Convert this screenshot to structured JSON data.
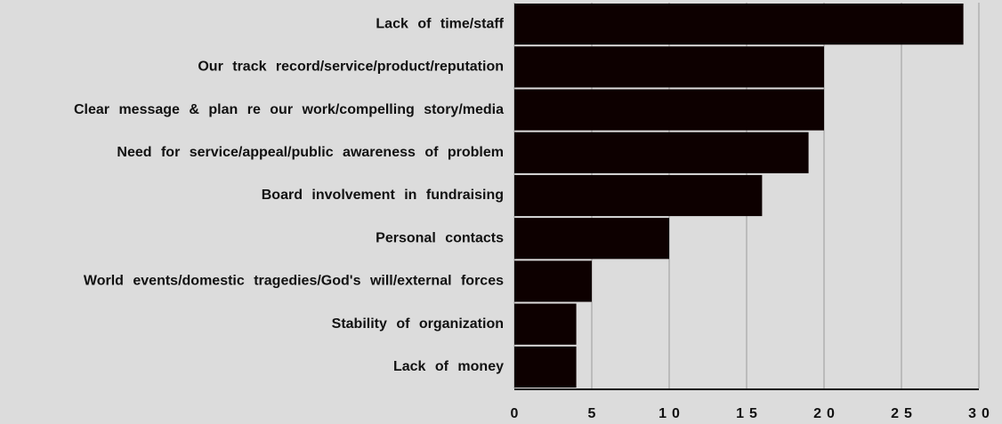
{
  "chart_data": {
    "type": "bar",
    "orientation": "horizontal",
    "categories": [
      "Lack of time/staff",
      "Our track record/service/product/reputation",
      "Clear message & plan re our work/compelling story/media",
      "Need for service/appeal/public awareness of problem",
      "Board involvement in fundraising",
      "Personal contacts",
      "World events/domestic tragedies/God's will/external forces",
      "Stability of organization",
      "Lack of money"
    ],
    "values": [
      29,
      20,
      20,
      19,
      16,
      10,
      5,
      4,
      4
    ],
    "color": "#0d0000",
    "xlim": [
      0,
      30
    ],
    "xticks": [
      0,
      5,
      10,
      15,
      20,
      25,
      30
    ],
    "grid": true
  }
}
